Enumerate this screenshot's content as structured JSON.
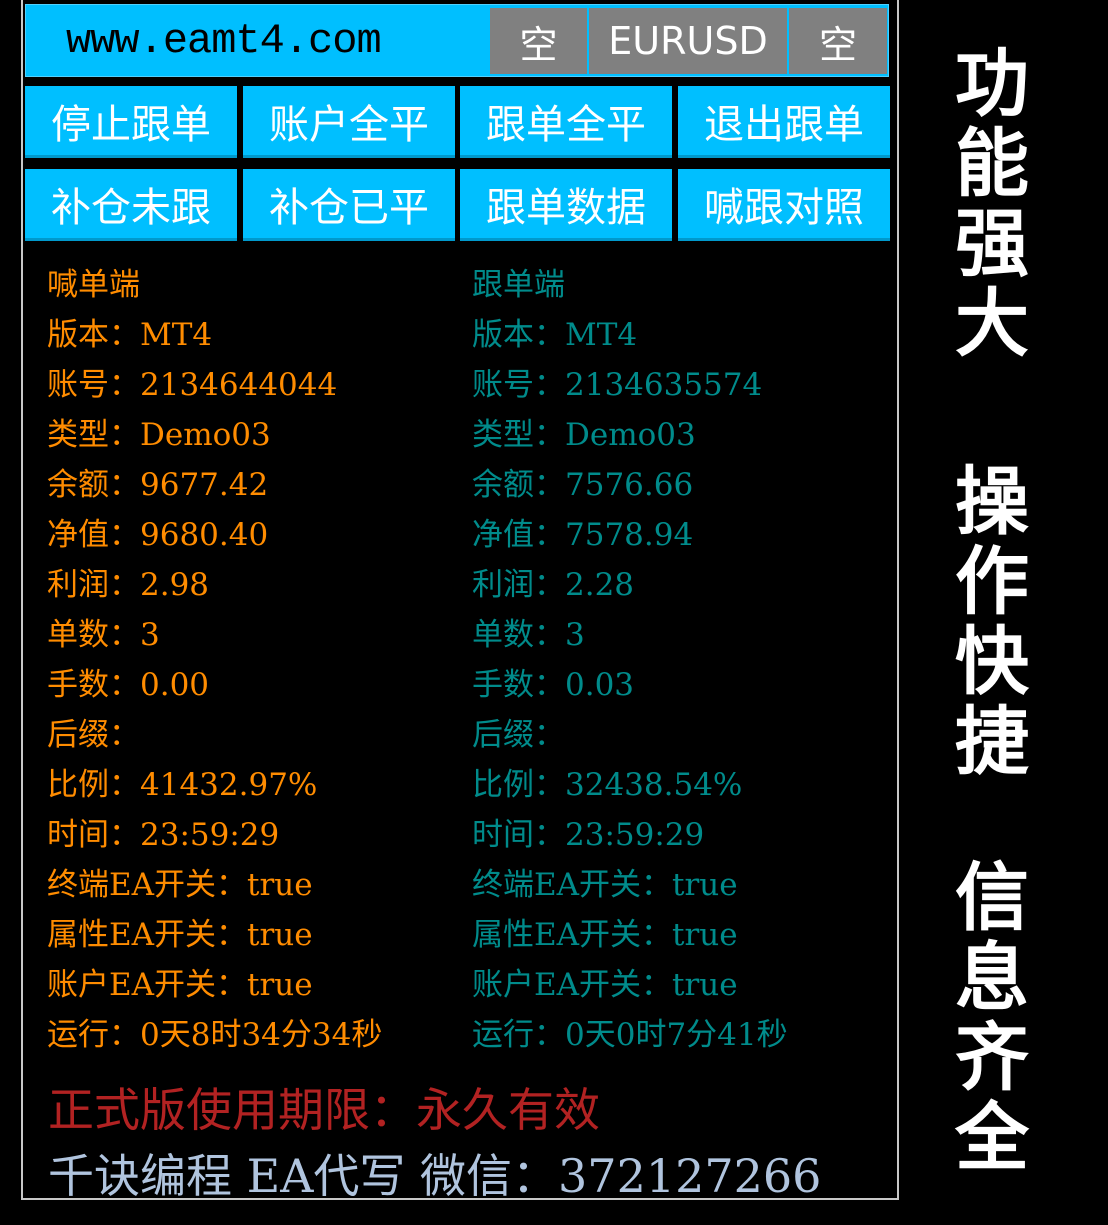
{
  "header": {
    "site": "www.eamt4.com",
    "left_slot": "空",
    "symbol": "EURUSD",
    "right_slot": "空"
  },
  "buttons": [
    "停止跟单",
    "账户全平",
    "跟单全平",
    "退出跟单",
    "补仓未跟",
    "补仓已平",
    "跟单数据",
    "喊跟对照"
  ],
  "colors": {
    "accent": "#00bfff",
    "caller": "#ff8c00",
    "follower": "#008b8b",
    "expiry": "#b22222",
    "contact": "#b0c4de"
  },
  "caller": {
    "title": "喊单端",
    "rows": [
      "版本：MT4",
      "账号：2134644044",
      "类型：Demo03",
      "余额：9677.42",
      "净值：9680.40",
      "利润：2.98",
      "单数：3",
      "手数：0.00",
      "后缀：",
      "比例：41432.97%",
      "时间：23:59:29",
      "终端EA开关：true",
      "属性EA开关：true",
      "账户EA开关：true",
      "运行：0天8时34分34秒"
    ]
  },
  "follower": {
    "title": "跟单端",
    "rows": [
      "版本：MT4",
      "账号：2134635574",
      "类型：Demo03",
      "余额：7576.66",
      "净值：7578.94",
      "利润：2.28",
      "单数：3",
      "手数：0.03",
      "后缀：",
      "比例：32438.54%",
      "时间：23:59:29",
      "终端EA开关：true",
      "属性EA开关：true",
      "账户EA开关：true",
      "运行：0天0时7分41秒"
    ]
  },
  "expiry": "正式版使用期限：永久有效",
  "contact": "千诀编程 EA代写 微信：372127266",
  "slogans": [
    "功能强大",
    "操作快捷",
    "信息齐全"
  ]
}
